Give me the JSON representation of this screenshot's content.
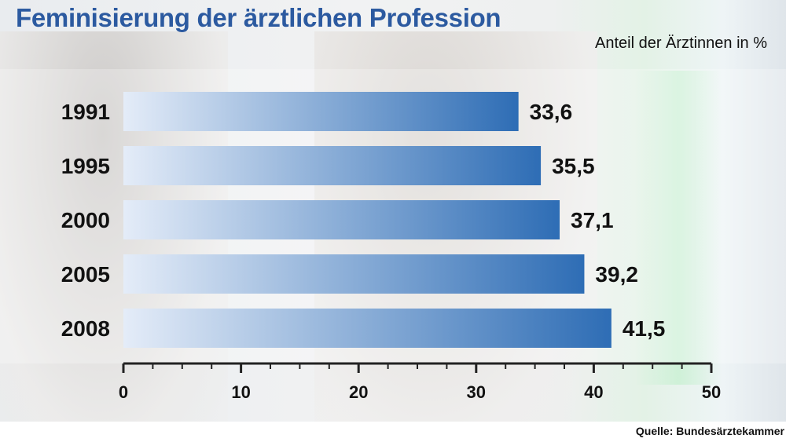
{
  "title": "Feminisierung der ärztlichen Profession",
  "unit_label": "Anteil der Ärztinnen in %",
  "source": "Quelle: Bundesärztekammer",
  "colors": {
    "bar_start": "#e4ecf8",
    "bar_end": "#2e6db5",
    "title": "#2c5aa0"
  },
  "chart_data": {
    "type": "bar",
    "orientation": "horizontal",
    "categories": [
      "1991",
      "1995",
      "2000",
      "2005",
      "2008"
    ],
    "values": [
      33.6,
      35.5,
      37.1,
      39.2,
      41.5
    ],
    "value_labels": [
      "33,6",
      "35,5",
      "37,1",
      "39,2",
      "41,5"
    ],
    "xlim": [
      0,
      50
    ],
    "ticks": [
      "0",
      "10",
      "20",
      "30",
      "40",
      "50"
    ],
    "title": "Feminisierung der ärztlichen Profession",
    "xlabel": "",
    "ylabel": "",
    "grid": false
  }
}
